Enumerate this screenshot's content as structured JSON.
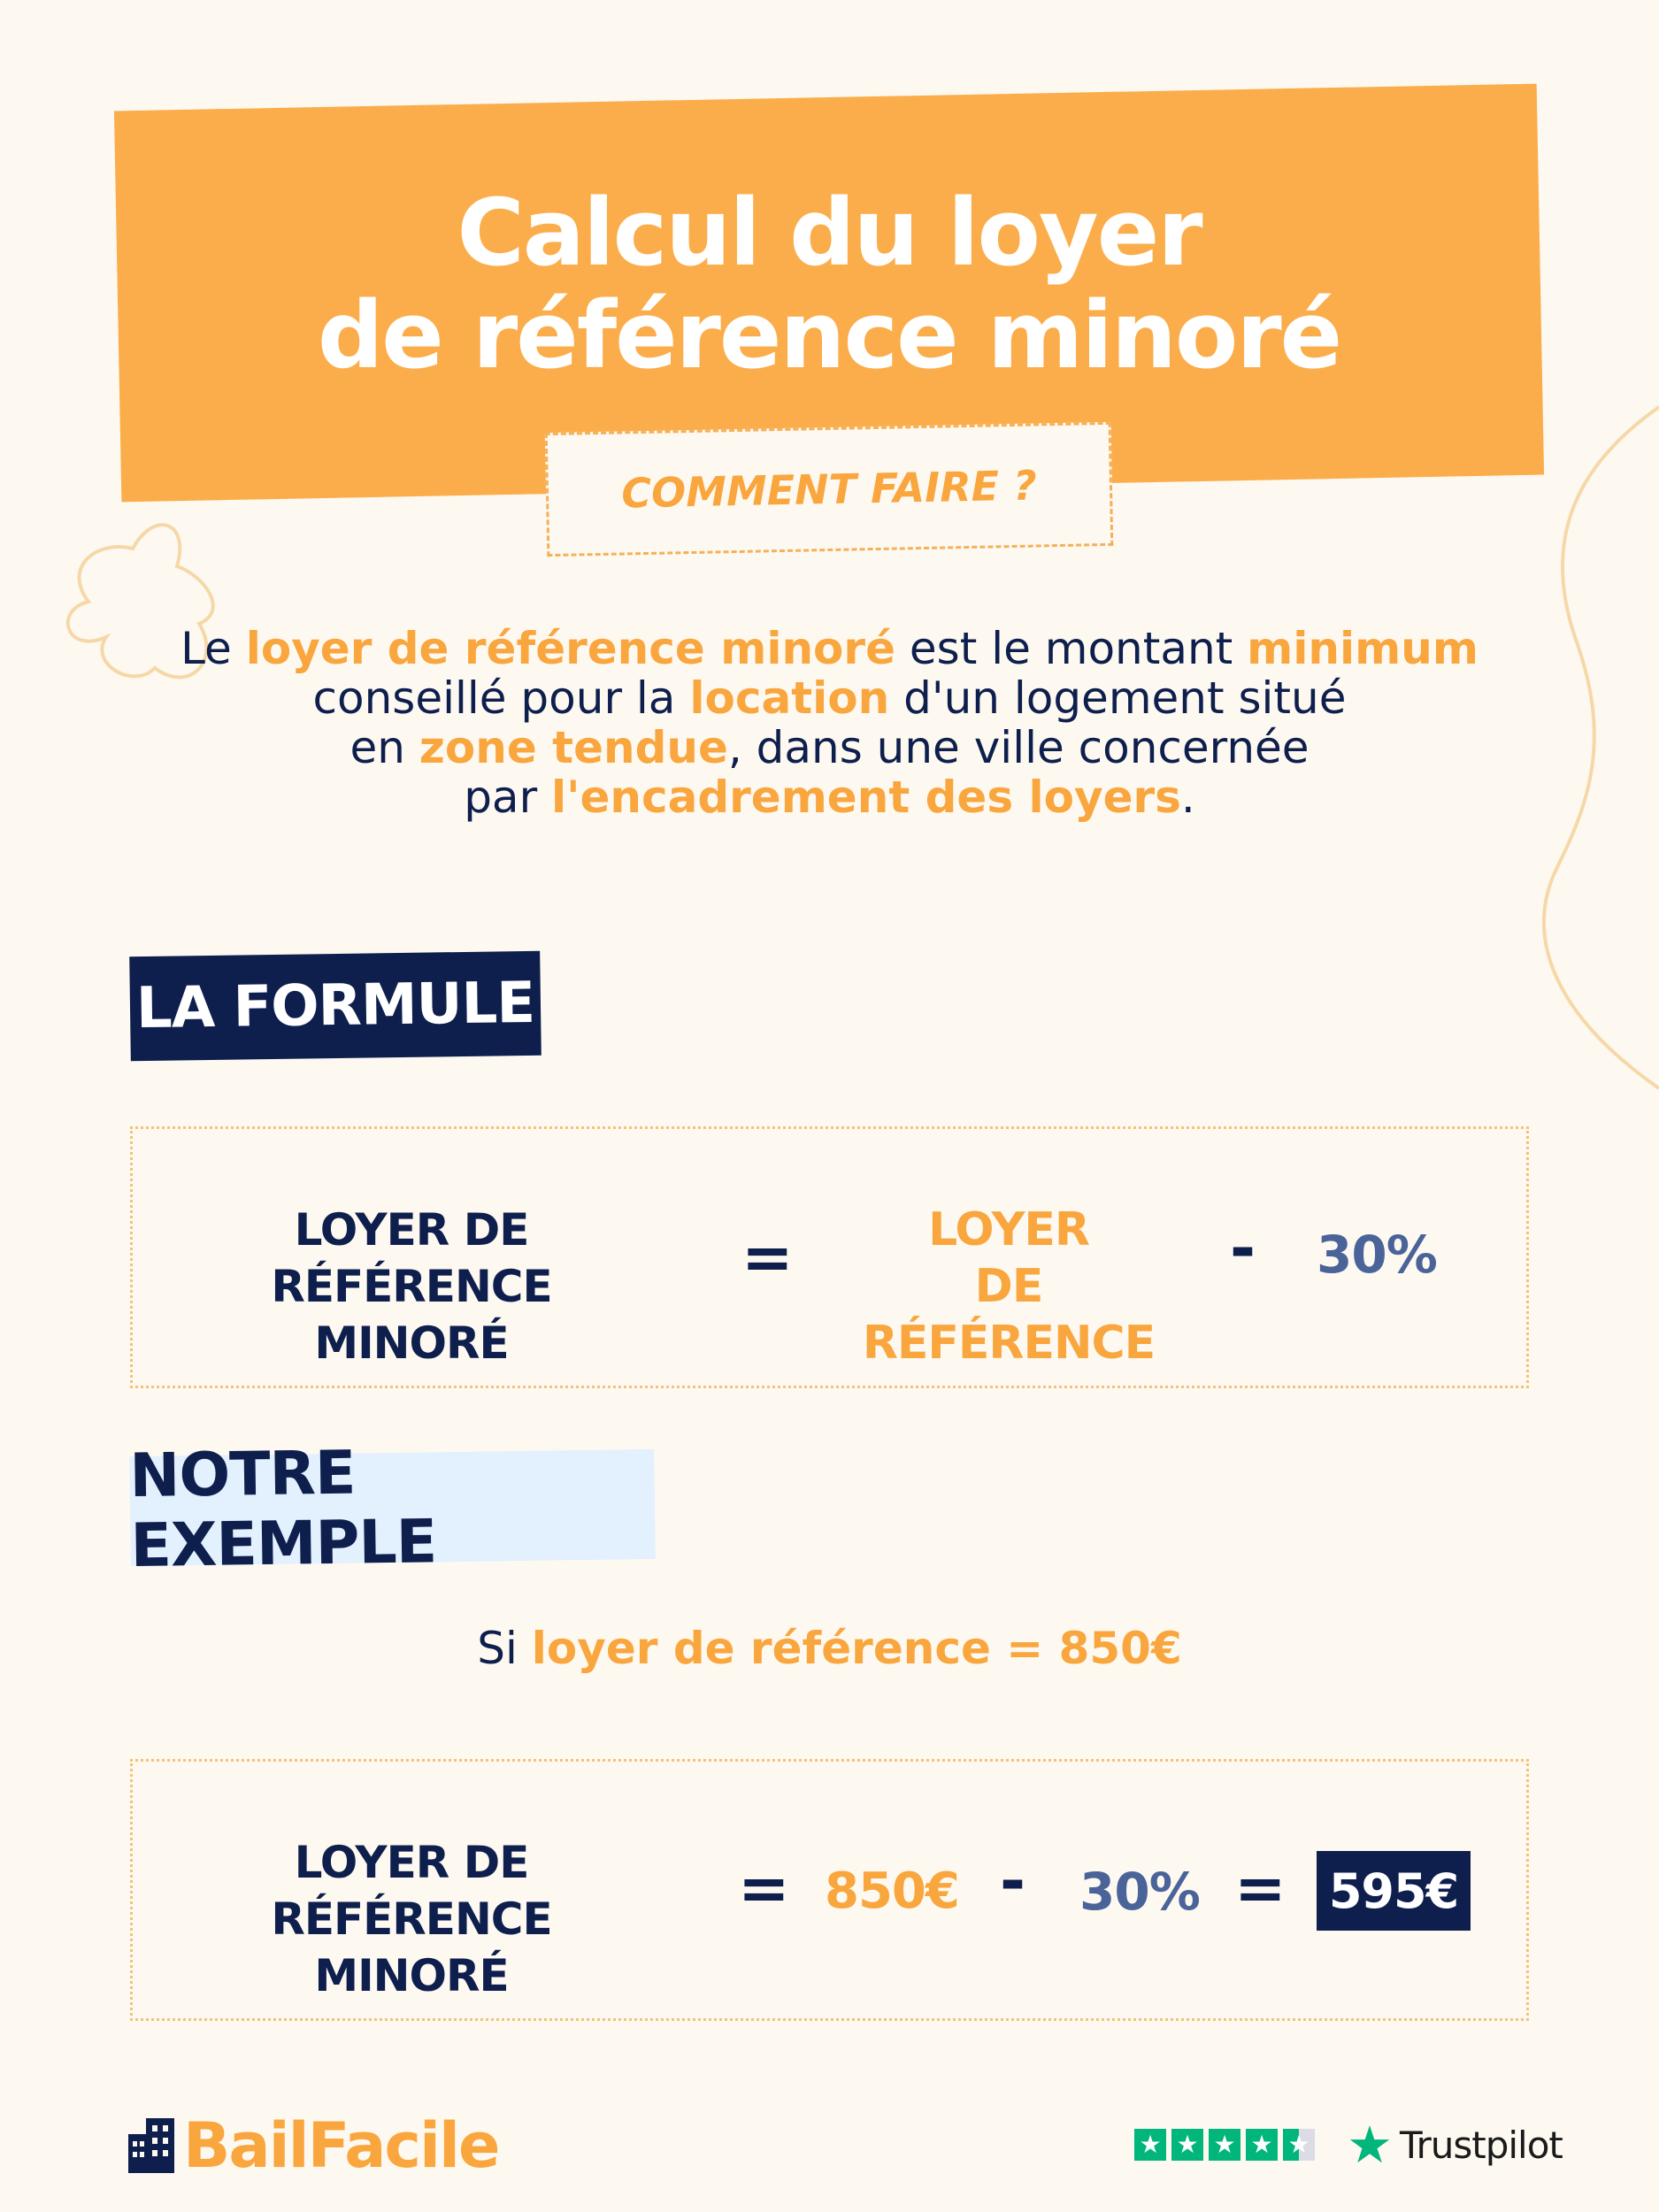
{
  "header": {
    "title_line1": "Calcul du loyer",
    "title_line2": "de référence minoré",
    "subtitle": "COMMENT FAIRE ?"
  },
  "intro": {
    "p1": "Le ",
    "h1": "loyer de référence minoré",
    "p2": " est le montant ",
    "h2": "minimum",
    "p3": "conseillé pour la ",
    "h3": "location",
    "p4": " d'un logement situé",
    "p5": "en ",
    "h4": "zone tendue",
    "p6": ", dans une ville concernée",
    "p7": "par ",
    "h5": "l'encadrement des loyers",
    "p8": "."
  },
  "formula": {
    "label": "LA FORMULE",
    "lhs_line1": "LOYER DE",
    "lhs_line2": "RÉFÉRENCE MINORÉ",
    "equals": "=",
    "rhs_line1": "LOYER",
    "rhs_line2": "DE RÉFÉRENCE",
    "minus": "-",
    "percent": "30%"
  },
  "example": {
    "label": "NOTRE EXEMPLE",
    "si_prefix": "Si ",
    "si_value": "loyer de référence = 850€",
    "lhs_line1": "LOYER DE",
    "lhs_line2": "RÉFÉRENCE MINORÉ",
    "equals": "=",
    "amount": "850€",
    "minus": "-",
    "percent": "30%",
    "equals2": "=",
    "result": "595€"
  },
  "footer": {
    "brand": "BailFacile",
    "trustpilot": "Trustpilot",
    "rating_stars": 4.5
  },
  "colors": {
    "orange": "#fbad4b",
    "navy": "#0e1f4d",
    "blue": "#4a6399",
    "background": "#fdf9f1",
    "trustpilot_green": "#00b67a"
  }
}
